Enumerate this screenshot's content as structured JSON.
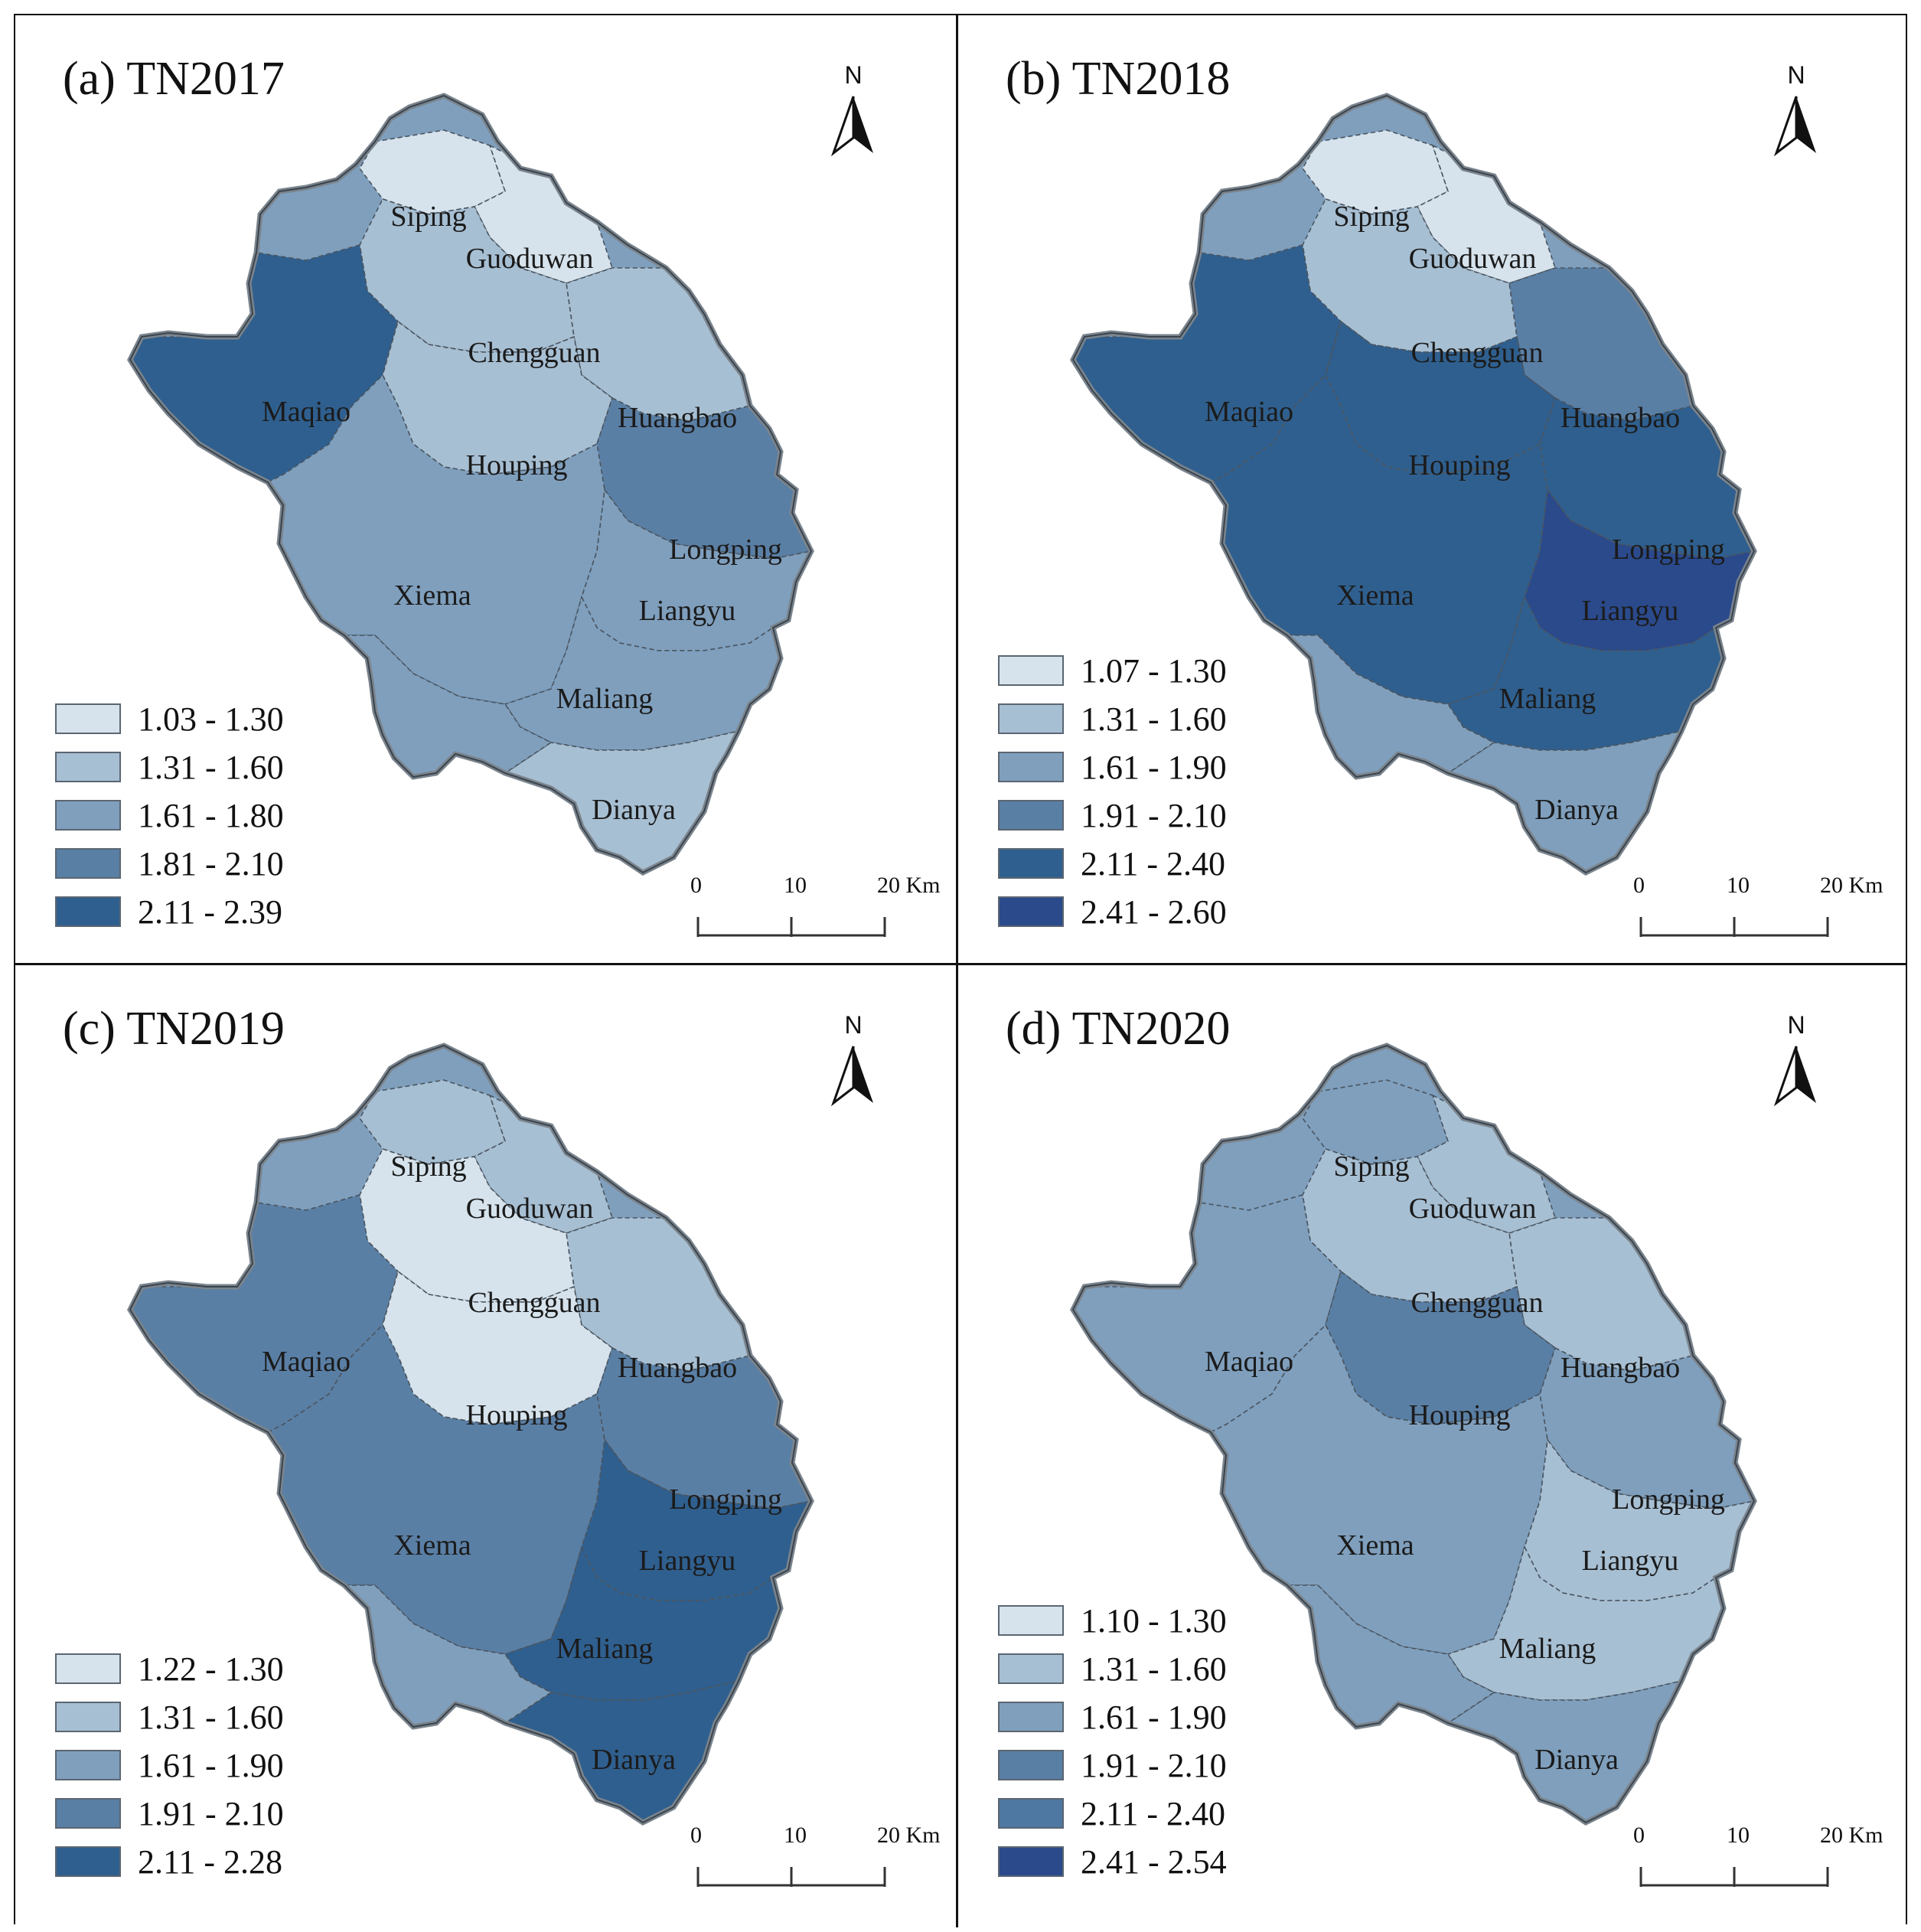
{
  "figure": {
    "panels": [
      {
        "title": "(a) TN2017",
        "north": "N",
        "towns": [
          "Siping",
          "Guoduwan",
          "Chengguan",
          "Maqiao",
          "Huangbao",
          "Houping",
          "Longping",
          "Xiema",
          "Liangyu",
          "Maliang",
          "Dianya"
        ],
        "legend": [
          {
            "label": "1.03 - 1.30",
            "color": "#d6e3ec"
          },
          {
            "label": "1.31 - 1.60",
            "color": "#a7bfd3"
          },
          {
            "label": "1.61 - 1.80",
            "color": "#7f9fbd"
          },
          {
            "label": "1.81 - 2.10",
            "color": "#5a7fa5"
          },
          {
            "label": "2.11 - 2.39",
            "color": "#2f5f8e"
          }
        ],
        "zones": {
          "Siping": 0,
          "Guoduwan": 0,
          "Chengguan": 1,
          "Maqiao": 4,
          "Huangbao": 1,
          "Houping": 1,
          "Longping": 3,
          "Xiema": 2,
          "Liangyu": 2,
          "Maliang": 2,
          "Dianya": 1
        },
        "scale": {
          "ticks": [
            "0",
            "10",
            "20 Km"
          ]
        }
      },
      {
        "title": "(b) TN2018",
        "north": "N",
        "towns": [
          "Siping",
          "Guoduwan",
          "Chengguan",
          "Maqiao",
          "Huangbao",
          "Houping",
          "Longping",
          "Xiema",
          "Liangyu",
          "Maliang",
          "Dianya"
        ],
        "legend": [
          {
            "label": "1.07 - 1.30",
            "color": "#d6e3ec"
          },
          {
            "label": "1.31 - 1.60",
            "color": "#a7bfd3"
          },
          {
            "label": "1.61 - 1.90",
            "color": "#7f9fbd"
          },
          {
            "label": "1.91 - 2.10",
            "color": "#5a7fa5"
          },
          {
            "label": "2.11 - 2.40",
            "color": "#2f5f8e"
          },
          {
            "label": "2.41 - 2.60",
            "color": "#2b4a8c"
          }
        ],
        "zones": {
          "Siping": 0,
          "Guoduwan": 0,
          "Chengguan": 1,
          "Maqiao": 4,
          "Huangbao": 3,
          "Houping": 4,
          "Longping": 4,
          "Xiema": 4,
          "Liangyu": 5,
          "Maliang": 4,
          "Dianya": 2
        },
        "scale": {
          "ticks": [
            "0",
            "10",
            "20 Km"
          ]
        }
      },
      {
        "title": "(c) TN2019",
        "north": "N",
        "towns": [
          "Siping",
          "Guoduwan",
          "Chengguan",
          "Maqiao",
          "Huangbao",
          "Houping",
          "Longping",
          "Xiema",
          "Liangyu",
          "Maliang",
          "Dianya"
        ],
        "legend": [
          {
            "label": "1.22 - 1.30",
            "color": "#d6e3ec"
          },
          {
            "label": "1.31 - 1.60",
            "color": "#a7bfd3"
          },
          {
            "label": "1.61 - 1.90",
            "color": "#7f9fbd"
          },
          {
            "label": "1.91 - 2.10",
            "color": "#5a7fa5"
          },
          {
            "label": "2.11 - 2.28",
            "color": "#2f5f8e"
          }
        ],
        "zones": {
          "Siping": 1,
          "Guoduwan": 1,
          "Chengguan": 0,
          "Maqiao": 3,
          "Huangbao": 1,
          "Houping": 0,
          "Longping": 3,
          "Xiema": 3,
          "Liangyu": 4,
          "Maliang": 4,
          "Dianya": 4
        },
        "scale": {
          "ticks": [
            "0",
            "10",
            "20 Km"
          ]
        }
      },
      {
        "title": "(d) TN2020",
        "north": "N",
        "towns": [
          "Siping",
          "Guoduwan",
          "Chengguan",
          "Maqiao",
          "Huangbao",
          "Houping",
          "Longping",
          "Xiema",
          "Liangyu",
          "Maliang",
          "Dianya"
        ],
        "legend": [
          {
            "label": "1.10 - 1.30",
            "color": "#d6e3ec"
          },
          {
            "label": "1.31 - 1.60",
            "color": "#a7bfd3"
          },
          {
            "label": "1.61 - 1.90",
            "color": "#7f9fbd"
          },
          {
            "label": "1.91 - 2.10",
            "color": "#5a7fa5"
          },
          {
            "label": "2.11 - 2.40",
            "color": "#4e78a2"
          },
          {
            "label": "2.41 - 2.54",
            "color": "#2b4a8c"
          }
        ],
        "zones": {
          "Siping": 2,
          "Guoduwan": 1,
          "Chengguan": 1,
          "Maqiao": 2,
          "Huangbao": 1,
          "Houping": 3,
          "Longping": 2,
          "Xiema": 2,
          "Liangyu": 1,
          "Maliang": 1,
          "Dianya": 2
        },
        "scale": {
          "ticks": [
            "0",
            "10",
            "20 Km"
          ]
        }
      }
    ]
  }
}
